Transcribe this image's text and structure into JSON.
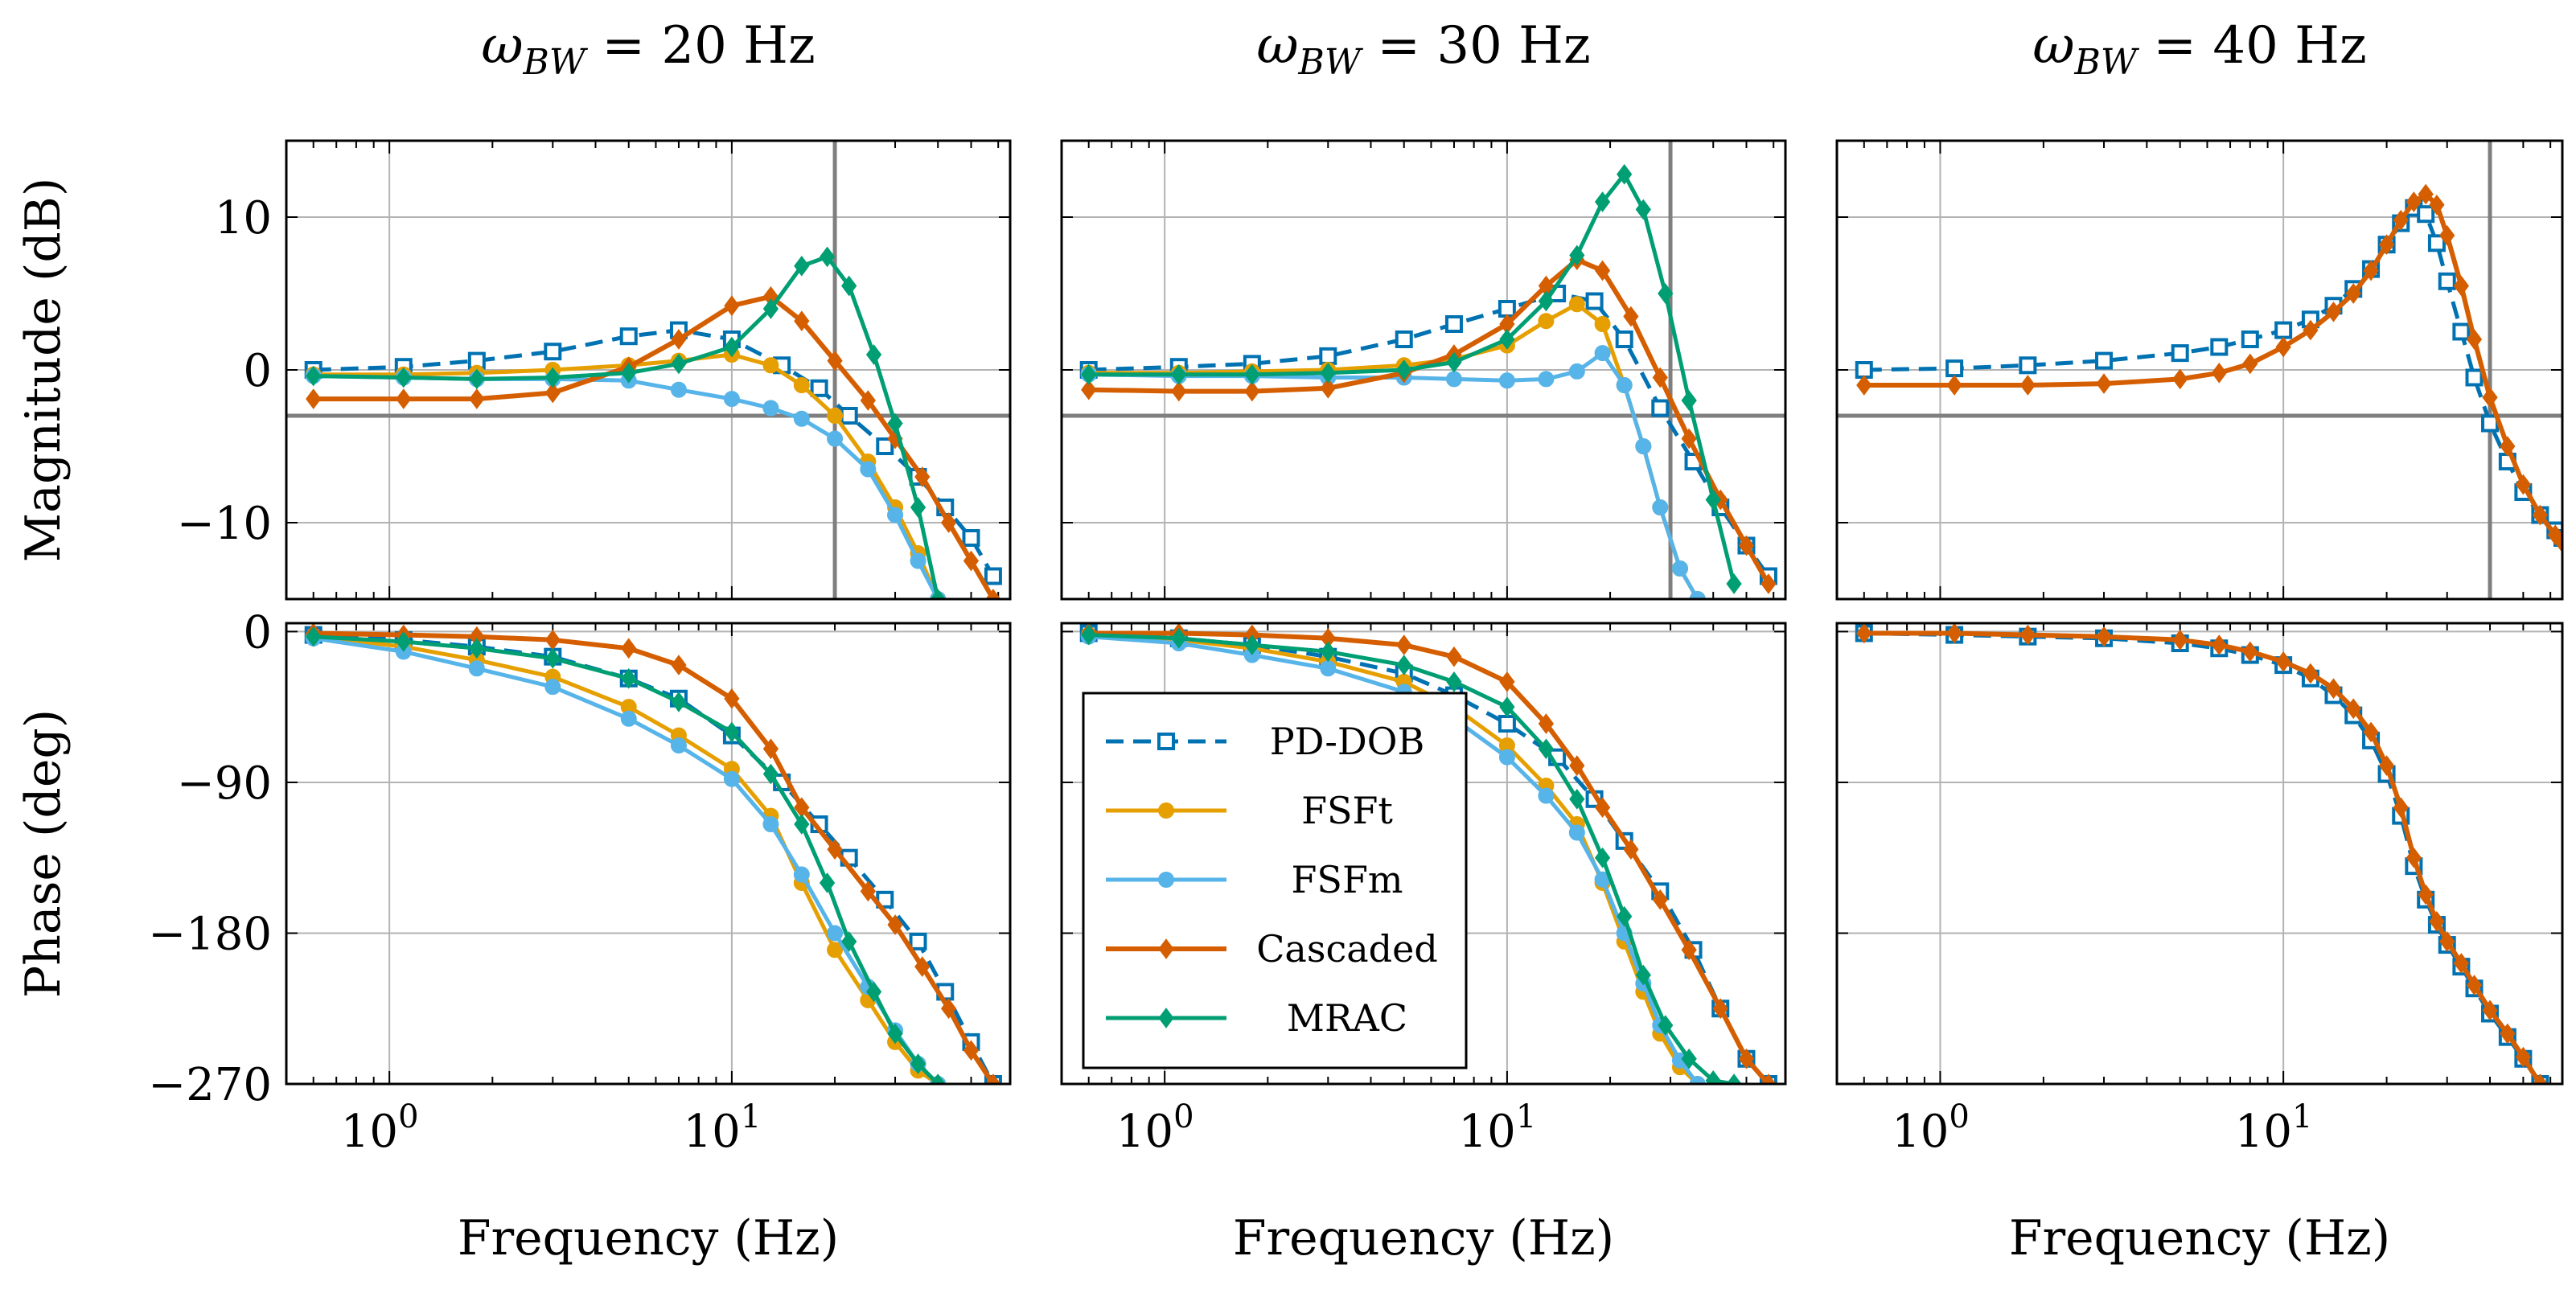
{
  "colors": {
    "PD-DOB": "#0072b2",
    "FSFt": "#e69f00",
    "FSFm": "#56b4e9",
    "Cascaded": "#d55e00",
    "MRAC": "#009e73",
    "grid": "#b3b3b3",
    "reference": "#7f7f7f"
  },
  "chart_data": {
    "type": "line",
    "titles": [
      "ω_BW = 20 Hz",
      "ω_BW = 30 Hz",
      "ω_BW = 40 Hz"
    ],
    "bandwidths_hz": [
      20,
      30,
      40
    ],
    "xlabel": "Frequency (Hz)",
    "xscale": "log",
    "xlim": [
      0.5,
      65
    ],
    "xticks": [
      1,
      10
    ],
    "xtick_labels": [
      "10^0",
      "10^1"
    ],
    "magnitude": {
      "ylabel": "Magnitude (dB)",
      "ylim": [
        -15,
        15
      ],
      "yticks": [
        -10,
        0,
        10
      ],
      "ytick_labels": [
        "−10",
        "0",
        "10"
      ],
      "reference_level_db": -3
    },
    "phase": {
      "ylabel": "Phase (deg)",
      "ylim": [
        -270,
        5
      ],
      "yticks": [
        -270,
        -180,
        -90,
        0
      ],
      "ytick_labels": [
        "−270",
        "−180",
        "−90",
        "0"
      ]
    },
    "legend": [
      "PD-DOB",
      "FSFt",
      "FSFm",
      "Cascaded",
      "MRAC"
    ],
    "panels": [
      {
        "bandwidth_hz": 20,
        "magnitude_series": [
          {
            "name": "PD-DOB",
            "x": [
              0.6,
              1.1,
              1.8,
              3.0,
              5.0,
              7.0,
              10,
              14,
              18,
              22,
              28,
              35,
              42,
              50,
              58
            ],
            "y": [
              0.0,
              0.2,
              0.6,
              1.2,
              2.2,
              2.6,
              2.0,
              0.3,
              -1.2,
              -3.0,
              -5.0,
              -7.0,
              -9.0,
              -11.0,
              -13.5
            ]
          },
          {
            "name": "FSFt",
            "x": [
              0.6,
              1.1,
              1.8,
              3.0,
              5.0,
              7.0,
              10,
              13,
              16,
              20,
              25,
              30,
              35,
              40
            ],
            "y": [
              -0.3,
              -0.3,
              -0.2,
              0.0,
              0.3,
              0.6,
              1.0,
              0.3,
              -1.0,
              -3.0,
              -6.0,
              -9.0,
              -12.0,
              -15.0
            ]
          },
          {
            "name": "FSFm",
            "x": [
              0.6,
              1.1,
              1.8,
              3.0,
              5.0,
              7.0,
              10,
              13,
              16,
              20,
              25,
              30,
              35,
              40
            ],
            "y": [
              -0.4,
              -0.5,
              -0.6,
              -0.6,
              -0.7,
              -1.3,
              -1.9,
              -2.5,
              -3.2,
              -4.5,
              -6.5,
              -9.5,
              -12.5,
              -15.0
            ]
          },
          {
            "name": "Cascaded",
            "x": [
              0.6,
              1.1,
              1.8,
              3.0,
              5.0,
              7.0,
              10,
              13,
              16,
              20,
              25,
              30,
              36,
              43,
              50,
              58
            ],
            "y": [
              -1.9,
              -1.9,
              -1.9,
              -1.5,
              0.2,
              2.0,
              4.2,
              4.8,
              3.2,
              0.6,
              -2.0,
              -4.5,
              -7.0,
              -10.0,
              -12.5,
              -15.0
            ]
          },
          {
            "name": "MRAC",
            "x": [
              0.6,
              1.1,
              1.8,
              3.0,
              5.0,
              7.0,
              10,
              13,
              16,
              19,
              22,
              26,
              30,
              35,
              40
            ],
            "y": [
              -0.4,
              -0.5,
              -0.6,
              -0.5,
              -0.2,
              0.4,
              1.5,
              4.0,
              6.8,
              7.4,
              5.5,
              1.0,
              -3.5,
              -9.0,
              -15.0
            ]
          }
        ],
        "phase_series": [
          {
            "name": "PD-DOB",
            "x": [
              0.6,
              1.1,
              1.8,
              3.0,
              5.0,
              7.0,
              10,
              14,
              18,
              22,
              28,
              35,
              42,
              50,
              58
            ],
            "y": [
              -2,
              -5,
              -9,
              -15,
              -28,
              -40,
              -62,
              -90,
              -115,
              -135,
              -160,
              -185,
              -215,
              -245,
              -270
            ]
          },
          {
            "name": "FSFt",
            "x": [
              0.6,
              1.1,
              1.8,
              3.0,
              5.0,
              7.0,
              10,
              13,
              16,
              20,
              25,
              30,
              35,
              40
            ],
            "y": [
              -3,
              -9,
              -17,
              -27,
              -45,
              -62,
              -82,
              -110,
              -150,
              -190,
              -220,
              -245,
              -262,
              -270
            ]
          },
          {
            "name": "FSFm",
            "x": [
              0.6,
              1.1,
              1.8,
              3.0,
              5.0,
              7.0,
              10,
              13,
              16,
              20,
              25,
              30,
              35,
              40
            ],
            "y": [
              -4,
              -12,
              -22,
              -33,
              -52,
              -68,
              -88,
              -115,
              -145,
              -180,
              -212,
              -238,
              -258,
              -270
            ]
          },
          {
            "name": "Cascaded",
            "x": [
              0.6,
              1.1,
              1.8,
              3.0,
              5.0,
              7.0,
              10,
              13,
              16,
              20,
              25,
              30,
              36,
              43,
              50,
              58
            ],
            "y": [
              -1,
              -2,
              -3,
              -5,
              -10,
              -20,
              -40,
              -70,
              -105,
              -130,
              -155,
              -175,
              -200,
              -225,
              -250,
              -270
            ]
          },
          {
            "name": "MRAC",
            "x": [
              0.6,
              1.1,
              1.8,
              3.0,
              5.0,
              7.0,
              10,
              13,
              16,
              19,
              22,
              26,
              30,
              35,
              40
            ],
            "y": [
              -3,
              -6,
              -10,
              -16,
              -28,
              -42,
              -60,
              -85,
              -115,
              -150,
              -185,
              -215,
              -240,
              -258,
              -270
            ]
          }
        ]
      },
      {
        "bandwidth_hz": 30,
        "magnitude_series": [
          {
            "name": "PD-DOB",
            "x": [
              0.6,
              1.1,
              1.8,
              3.0,
              5.0,
              7.0,
              10,
              14,
              18,
              22,
              28,
              35,
              42,
              50,
              58
            ],
            "y": [
              0.0,
              0.2,
              0.4,
              0.9,
              2.0,
              3.0,
              4.0,
              5.0,
              4.5,
              2.0,
              -2.5,
              -6.0,
              -9.0,
              -11.5,
              -13.5
            ]
          },
          {
            "name": "FSFt",
            "x": [
              0.6,
              1.1,
              1.8,
              3.0,
              5.0,
              7.0,
              10,
              13,
              16,
              19,
              22,
              25,
              28,
              32,
              36
            ],
            "y": [
              -0.2,
              -0.2,
              -0.1,
              0.0,
              0.3,
              0.7,
              1.6,
              3.2,
              4.3,
              3.0,
              -1.0,
              -5.0,
              -9.0,
              -13.0,
              -15.0
            ]
          },
          {
            "name": "FSFm",
            "x": [
              0.6,
              1.1,
              1.8,
              3.0,
              5.0,
              7.0,
              10,
              13,
              16,
              19,
              22,
              25,
              28,
              32,
              36
            ],
            "y": [
              -0.3,
              -0.4,
              -0.4,
              -0.5,
              -0.5,
              -0.6,
              -0.7,
              -0.6,
              -0.1,
              1.1,
              -1.0,
              -5.0,
              -9.0,
              -13.0,
              -15.0
            ]
          },
          {
            "name": "Cascaded",
            "x": [
              0.6,
              1.1,
              1.8,
              3.0,
              5.0,
              7.0,
              10,
              13,
              16,
              19,
              23,
              28,
              34,
              42,
              50,
              58
            ],
            "y": [
              -1.3,
              -1.4,
              -1.4,
              -1.2,
              -0.2,
              1.0,
              3.0,
              5.5,
              7.2,
              6.5,
              3.5,
              -0.5,
              -4.5,
              -8.5,
              -11.5,
              -14.0
            ]
          },
          {
            "name": "MRAC",
            "x": [
              0.6,
              1.1,
              1.8,
              3.0,
              5.0,
              7.0,
              10,
              13,
              16,
              19,
              22,
              25,
              29,
              34,
              40,
              46
            ],
            "y": [
              -0.3,
              -0.3,
              -0.3,
              -0.2,
              0.0,
              0.5,
              2.0,
              4.5,
              7.5,
              11.0,
              12.8,
              10.5,
              5.0,
              -2.0,
              -8.5,
              -14.0
            ]
          }
        ],
        "phase_series": [
          {
            "name": "PD-DOB",
            "x": [
              0.6,
              1.1,
              1.8,
              3.0,
              5.0,
              7.0,
              10,
              14,
              18,
              22,
              28,
              35,
              42,
              50,
              58
            ],
            "y": [
              -1,
              -4,
              -8,
              -15,
              -25,
              -38,
              -55,
              -75,
              -100,
              -125,
              -155,
              -190,
              -225,
              -255,
              -270
            ]
          },
          {
            "name": "FSFt",
            "x": [
              0.6,
              1.1,
              1.8,
              3.0,
              5.0,
              7.0,
              10,
              13,
              16,
              19,
              22,
              25,
              28,
              32,
              36
            ],
            "y": [
              -2,
              -5,
              -10,
              -18,
              -30,
              -45,
              -68,
              -92,
              -115,
              -150,
              -185,
              -215,
              -240,
              -260,
              -270
            ]
          },
          {
            "name": "FSFm",
            "x": [
              0.6,
              1.1,
              1.8,
              3.0,
              5.0,
              7.0,
              10,
              13,
              16,
              19,
              22,
              25,
              28,
              32,
              36
            ],
            "y": [
              -3,
              -7,
              -14,
              -22,
              -36,
              -52,
              -75,
              -98,
              -120,
              -148,
              -180,
              -210,
              -235,
              -256,
              -270
            ]
          },
          {
            "name": "Cascaded",
            "x": [
              0.6,
              1.1,
              1.8,
              3.0,
              5.0,
              7.0,
              10,
              13,
              16,
              19,
              23,
              28,
              34,
              42,
              50,
              58
            ],
            "y": [
              -1,
              -1,
              -2,
              -4,
              -8,
              -15,
              -30,
              -55,
              -80,
              -105,
              -130,
              -160,
              -190,
              -225,
              -255,
              -270
            ]
          },
          {
            "name": "MRAC",
            "x": [
              0.6,
              1.1,
              1.8,
              3.0,
              5.0,
              7.0,
              10,
              13,
              16,
              19,
              22,
              25,
              29,
              34,
              40,
              46
            ],
            "y": [
              -2,
              -4,
              -8,
              -12,
              -20,
              -30,
              -45,
              -70,
              -100,
              -135,
              -170,
              -205,
              -235,
              -255,
              -268,
              -270
            ]
          }
        ]
      },
      {
        "bandwidth_hz": 40,
        "magnitude_series": [
          {
            "name": "PD-DOB",
            "x": [
              0.6,
              1.1,
              1.8,
              3.0,
              5.0,
              6.5,
              8.0,
              10,
              12,
              14,
              16,
              18,
              20,
              22,
              24,
              26,
              28,
              30,
              33,
              36,
              40,
              45,
              50,
              56,
              62,
              65
            ],
            "y": [
              0.0,
              0.1,
              0.3,
              0.6,
              1.1,
              1.5,
              2.0,
              2.6,
              3.3,
              4.2,
              5.3,
              6.6,
              8.2,
              9.6,
              10.6,
              10.2,
              8.3,
              5.8,
              2.5,
              -0.5,
              -3.5,
              -6.0,
              -8.0,
              -9.5,
              -10.5,
              -11.0
            ]
          },
          {
            "name": "Cascaded",
            "x": [
              0.6,
              1.1,
              1.8,
              3.0,
              5.0,
              6.5,
              8.0,
              10,
              12,
              14,
              16,
              18,
              20,
              22,
              24,
              26,
              28,
              30,
              33,
              36,
              40,
              45,
              50,
              56,
              62,
              65
            ],
            "y": [
              -1.0,
              -1.0,
              -1.0,
              -0.9,
              -0.6,
              -0.2,
              0.4,
              1.5,
              2.6,
              3.8,
              5.0,
              6.5,
              8.2,
              9.8,
              11.0,
              11.5,
              10.8,
              8.8,
              5.5,
              2.0,
              -1.8,
              -5.0,
              -7.5,
              -9.5,
              -10.8,
              -11.3
            ]
          }
        ],
        "phase_series": [
          {
            "name": "PD-DOB",
            "x": [
              0.6,
              1.1,
              1.8,
              3.0,
              5.0,
              6.5,
              8.0,
              10,
              12,
              14,
              16,
              18,
              20,
              22,
              24,
              26,
              28,
              30,
              33,
              36,
              40,
              45,
              50,
              56
            ],
            "y": [
              -1,
              -2,
              -3,
              -4,
              -7,
              -10,
              -14,
              -20,
              -28,
              -38,
              -50,
              -65,
              -85,
              -110,
              -140,
              -160,
              -175,
              -187,
              -200,
              -213,
              -228,
              -242,
              -255,
              -270
            ]
          },
          {
            "name": "Cascaded",
            "x": [
              0.6,
              1.1,
              1.8,
              3.0,
              5.0,
              6.5,
              8.0,
              10,
              12,
              14,
              16,
              18,
              20,
              22,
              24,
              26,
              28,
              30,
              33,
              36,
              40,
              45,
              50,
              56
            ],
            "y": [
              -1,
              -1,
              -2,
              -3,
              -5,
              -8,
              -12,
              -18,
              -25,
              -34,
              -46,
              -60,
              -80,
              -105,
              -135,
              -157,
              -173,
              -185,
              -198,
              -211,
              -226,
              -240,
              -254,
              -270
            ]
          }
        ]
      }
    ]
  }
}
